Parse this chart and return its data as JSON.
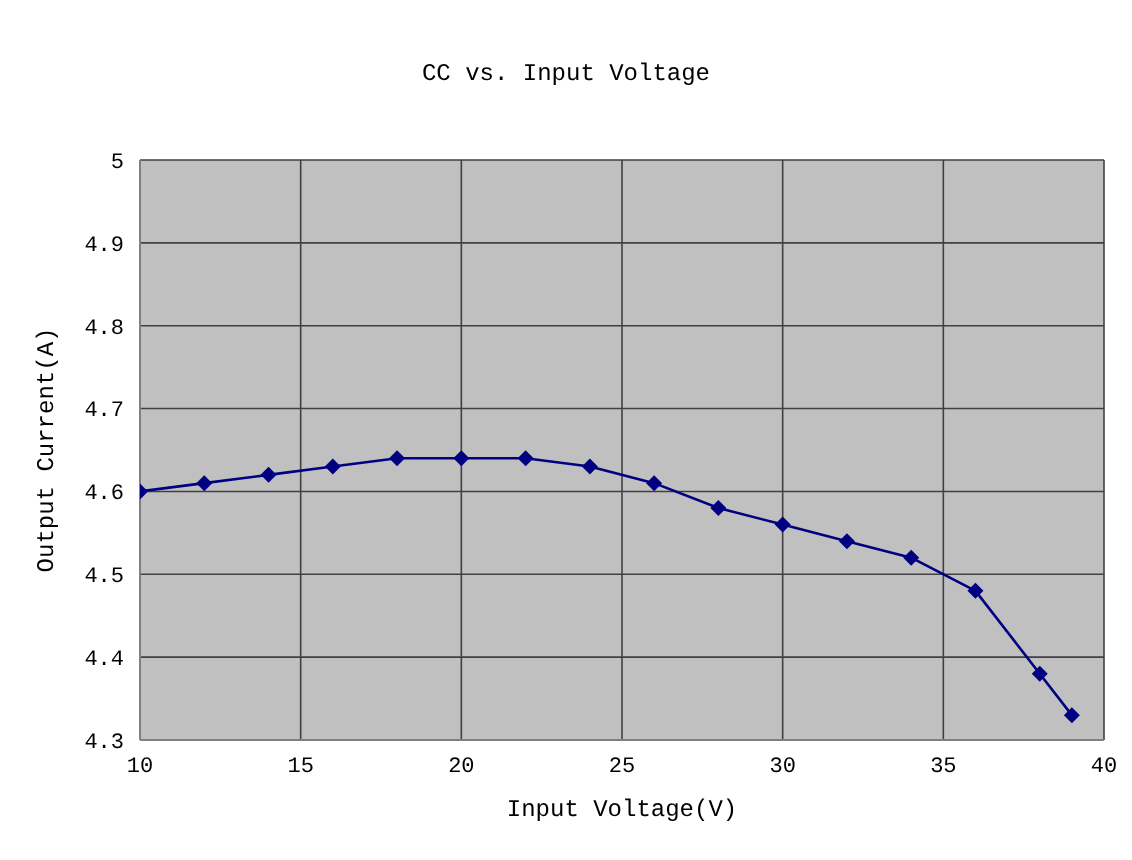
{
  "chart_data": {
    "type": "line",
    "title": "CC vs. Input Voltage",
    "xlabel": "Input Voltage(V)",
    "ylabel": "Output Current(A)",
    "x": [
      10,
      12,
      14,
      16,
      18,
      20,
      22,
      24,
      26,
      28,
      30,
      32,
      34,
      36,
      38,
      39
    ],
    "series": [
      {
        "color": "#000080",
        "values": [
          4.6,
          4.61,
          4.62,
          4.63,
          4.64,
          4.64,
          4.64,
          4.63,
          4.61,
          4.58,
          4.56,
          4.54,
          4.52,
          4.48,
          4.38,
          4.33
        ]
      }
    ],
    "xlim": [
      10,
      40
    ],
    "xticks": [
      10,
      15,
      20,
      25,
      30,
      35,
      40
    ],
    "ylim": [
      4.3,
      5
    ],
    "yticks": [
      4.3,
      4.4,
      4.5,
      4.6,
      4.7,
      4.8,
      4.9,
      5
    ],
    "grid": true,
    "marker": "diamond",
    "line_style": "solid"
  }
}
